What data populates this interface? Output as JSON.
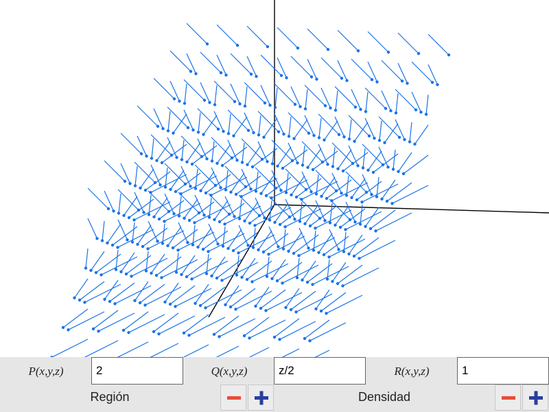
{
  "controls": {
    "p_label": "P(x,y,z)",
    "p_value": "2",
    "q_label": "Q(x,y,z)",
    "q_value": "z/2",
    "r_label": "R(x,y,z)",
    "r_value": "1",
    "region_label": "Región",
    "density_label": "Densidad"
  },
  "icons": {
    "minus": "minus-icon",
    "plus": "plus-icon"
  },
  "colors": {
    "vector": "#1a73e8",
    "axis": "#000000",
    "panel": "#e6e6e6",
    "minus": "#e74c3c",
    "plus": "#2a3f9d"
  }
}
